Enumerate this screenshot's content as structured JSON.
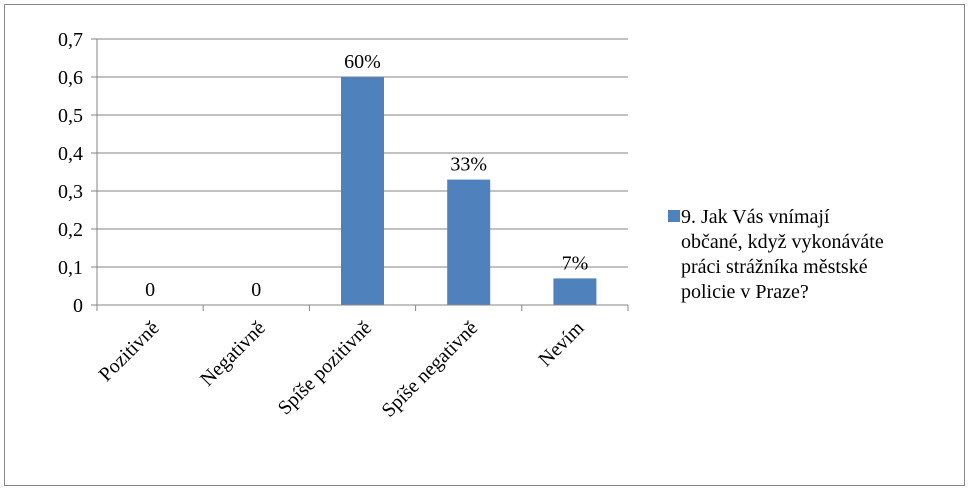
{
  "chart_data": {
    "type": "bar",
    "title": "",
    "xlabel": "",
    "ylabel": "",
    "categories": [
      "Pozitivně",
      "Negativně",
      "Spíše pozitivně",
      "Spíše negativně",
      "Nevím"
    ],
    "series": [
      {
        "name": "9. Jak Vás vnímají občané, když vykonáváte práci strážníka městské policie v Praze?",
        "values": [
          0,
          0,
          0.6,
          0.33,
          0.07
        ],
        "data_labels": [
          "0",
          "0",
          "60%",
          "33%",
          "7%"
        ],
        "color": "#4F81BD"
      }
    ],
    "ylim": [
      0,
      0.7
    ],
    "yticks": [
      "0",
      "0,1",
      "0,2",
      "0,3",
      "0,4",
      "0,5",
      "0,6",
      "0,7"
    ],
    "grid": true,
    "legend_position": "right"
  },
  "legend": {
    "label_lines": [
      "9. Jak Vás vnímají",
      "občané, když vykonáváte",
      "práci strážníka městské",
      "policie v Praze?"
    ]
  }
}
